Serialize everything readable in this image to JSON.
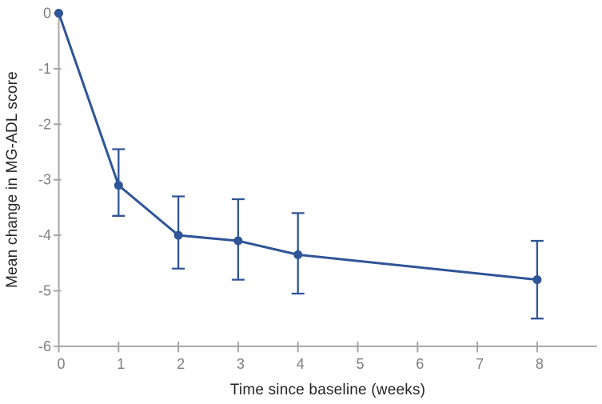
{
  "chart_data": {
    "type": "line",
    "title": "",
    "xlabel": "Time since baseline (weeks)",
    "ylabel": "Mean change in MG-ADL score",
    "x": [
      0,
      1,
      2,
      3,
      4,
      8
    ],
    "series": [
      {
        "name": "Mean change in MG-ADL score",
        "values": [
          0,
          -3.1,
          -4.0,
          -4.1,
          -4.35,
          -4.8
        ],
        "error_low": [
          null,
          -3.65,
          -4.6,
          -4.8,
          -5.05,
          -5.5
        ],
        "error_high": [
          null,
          -2.45,
          -3.3,
          -3.35,
          -3.6,
          -4.1
        ]
      }
    ],
    "xticks": [
      0,
      1,
      2,
      3,
      4,
      5,
      6,
      7,
      8
    ],
    "yticks": [
      0,
      -1,
      -2,
      -3,
      -4,
      -5,
      -6
    ],
    "xlim": [
      0,
      9
    ],
    "ylim": [
      -6,
      0
    ],
    "grid": false,
    "legend": false,
    "error_bar_type": "error bars",
    "colors": {
      "series": "#2F5597",
      "axis": "#A6A6A6",
      "tick_label": "#7F7F7F",
      "axis_title": "#262626",
      "background": "#FFFFFF"
    }
  }
}
